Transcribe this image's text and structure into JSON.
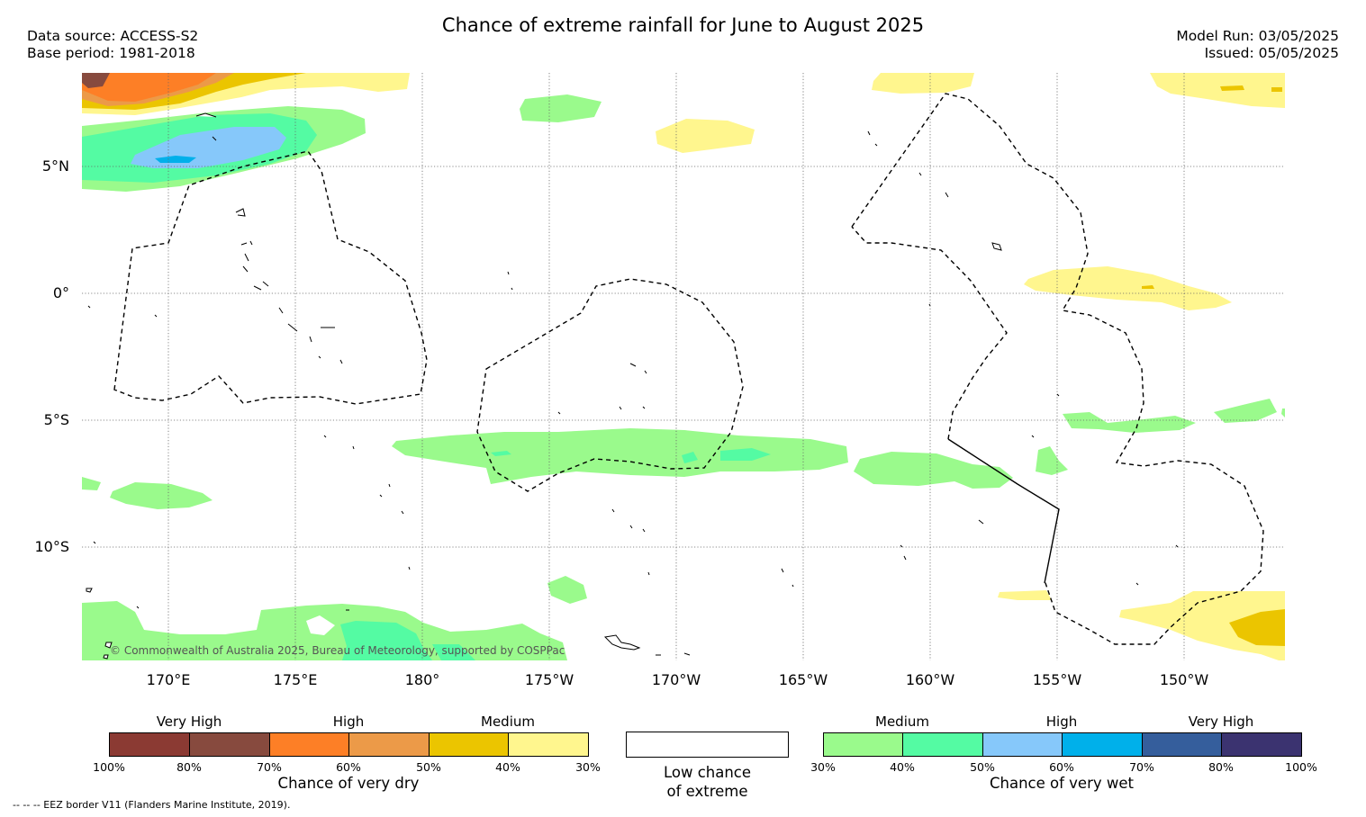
{
  "title": "Chance of extreme rainfall for June to August 2025",
  "data_source": "Data source: ACCESS-S2",
  "base_period": "Base period: 1981-2018",
  "model_run": "Model Run: 03/05/2025",
  "issued": "Issued: 05/05/2025",
  "map": {
    "latitude_labels": [
      "5°N",
      "0°",
      "5°S",
      "10°S"
    ],
    "longitude_labels": [
      "170°E",
      "175°E",
      "180°",
      "175°W",
      "170°W",
      "165°W",
      "160°W",
      "155°W",
      "150°W"
    ],
    "copyright": "© Commonwealth of Australia 2025, Bureau of Meteorology, supported by COSPPac",
    "eez_border_style": "dashed black line"
  },
  "legend": {
    "dry": {
      "headings": [
        "Very High",
        "High",
        "Medium"
      ],
      "colors": [
        "#8b3a33",
        "#874a3e",
        "#fd7f26",
        "#ec9a48",
        "#ebc500",
        "#fff68e"
      ],
      "ticks": [
        "100%",
        "80%",
        "70%",
        "60%",
        "50%",
        "40%",
        "30%"
      ],
      "caption": "Chance of very dry"
    },
    "low": {
      "color": "#ffffff",
      "caption_line1": "Low chance",
      "caption_line2": "of extreme"
    },
    "wet": {
      "headings": [
        "Medium",
        "High",
        "Very High"
      ],
      "colors": [
        "#9afa8c",
        "#54fba3",
        "#86c8fa",
        "#00b0ea",
        "#355e9c",
        "#3b3370"
      ],
      "ticks": [
        "30%",
        "40%",
        "50%",
        "60%",
        "70%",
        "80%",
        "100%"
      ],
      "caption": "Chance of very wet"
    }
  },
  "eez_note": "-- -- -- EEZ border V11 (Flanders Marine Institute, 2019)."
}
